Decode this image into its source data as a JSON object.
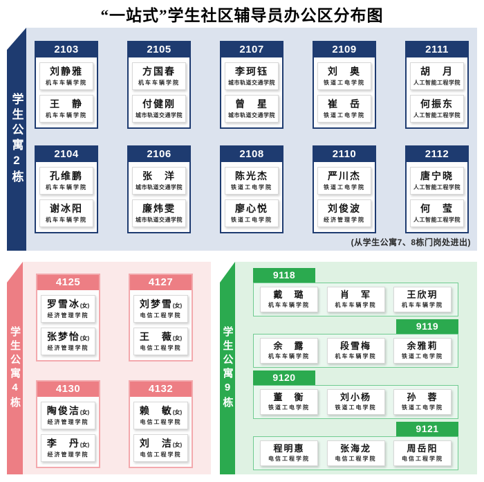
{
  "title": "“一站式”学生社区辅导员办公区分布图",
  "colors": {
    "navy": "#1e3b70",
    "blue_bg": "#dce3ee",
    "pink": "#ed7e84",
    "pink_border": "#f3a9ad",
    "pink_bg": "#fbe9e9",
    "green": "#2baa4f",
    "green_bg": "#dff2e3",
    "green_box_border": "#6fcb90",
    "green_box_bg": "#e9f7ee"
  },
  "buildings": [
    {
      "id": "b2",
      "name": "学生公寓2栋",
      "layout": "stacked",
      "note": "(从学生公寓7、8栋门岗处进出)",
      "rooms": [
        {
          "number": "2103",
          "staff": [
            {
              "name": "刘静雅",
              "dept": "机车车辆学院"
            },
            {
              "name": "王　静",
              "dept": "机车车辆学院"
            }
          ]
        },
        {
          "number": "2105",
          "staff": [
            {
              "name": "方国春",
              "dept": "机车车辆学院"
            },
            {
              "name": "付健刚",
              "dept": "城市轨道交通学院"
            }
          ]
        },
        {
          "number": "2107",
          "staff": [
            {
              "name": "李珂钰",
              "dept": "城市轨道交通学院"
            },
            {
              "name": "曾　星",
              "dept": "城市轨道交通学院"
            }
          ]
        },
        {
          "number": "2109",
          "staff": [
            {
              "name": "刘　奥",
              "dept": "铁道工电学院"
            },
            {
              "name": "崔　岳",
              "dept": "铁道工电学院"
            }
          ]
        },
        {
          "number": "2111",
          "staff": [
            {
              "name": "胡　月",
              "dept": "人工智能工程学院"
            },
            {
              "name": "何振东",
              "dept": "人工智能工程学院"
            }
          ]
        },
        {
          "number": "2104",
          "staff": [
            {
              "name": "孔维鹏",
              "dept": "机车车辆学院"
            },
            {
              "name": "谢冰阳",
              "dept": "机车车辆学院"
            }
          ]
        },
        {
          "number": "2106",
          "staff": [
            {
              "name": "张　洋",
              "dept": "城市轨道交通学院"
            },
            {
              "name": "廉炜雯",
              "dept": "城市轨道交通学院"
            }
          ]
        },
        {
          "number": "2108",
          "staff": [
            {
              "name": "陈光杰",
              "dept": "铁道工电学院"
            },
            {
              "name": "廖心悦",
              "dept": "铁道工电学院"
            }
          ]
        },
        {
          "number": "2110",
          "staff": [
            {
              "name": "严川杰",
              "dept": "铁道工电学院"
            },
            {
              "name": "刘俊波",
              "dept": "经济管理学院"
            }
          ]
        },
        {
          "number": "2112",
          "staff": [
            {
              "name": "唐宁晓",
              "dept": "人工智能工程学院"
            },
            {
              "name": "何　莹",
              "dept": "人工智能工程学院"
            }
          ]
        }
      ]
    },
    {
      "id": "b4",
      "name": "学生公寓4栋",
      "layout": "stacked",
      "rooms": [
        {
          "number": "4125",
          "staff": [
            {
              "name": "罗雪冰",
              "suffix": "(女)",
              "dept": "经济管理学院"
            },
            {
              "name": "张梦怡",
              "suffix": "(女)",
              "dept": "经济管理学院"
            }
          ]
        },
        {
          "number": "4127",
          "staff": [
            {
              "name": "刘梦雪",
              "suffix": "(女)",
              "dept": "电信工程学院"
            },
            {
              "name": "王　薇",
              "suffix": "(女)",
              "dept": "电信工程学院"
            }
          ]
        },
        {
          "number": "4130",
          "staff": [
            {
              "name": "陶俊洁",
              "suffix": "(女)",
              "dept": "经济管理学院"
            },
            {
              "name": "李　丹",
              "suffix": "(女)",
              "dept": "经济管理学院"
            }
          ]
        },
        {
          "number": "4132",
          "staff": [
            {
              "name": "赖　敏",
              "suffix": "(女)",
              "dept": "电信工程学院"
            },
            {
              "name": "刘　洁",
              "suffix": "(女)",
              "dept": "电信工程学院"
            }
          ]
        }
      ]
    },
    {
      "id": "b9",
      "name": "学生公寓9栋",
      "layout": "tabbed",
      "rooms": [
        {
          "number": "9118",
          "tab": "left",
          "staff": [
            {
              "name": "戴　璐",
              "dept": "机车车辆学院"
            },
            {
              "name": "肖　军",
              "dept": "机车车辆学院"
            },
            {
              "name": "王欣玥",
              "dept": "机车车辆学院"
            }
          ]
        },
        {
          "number": "9119",
          "tab": "right",
          "staff": [
            {
              "name": "余　露",
              "dept": "机车车辆学院"
            },
            {
              "name": "段雪梅",
              "dept": "机车车辆学院"
            },
            {
              "name": "余雅莉",
              "dept": "铁道工电学院"
            }
          ]
        },
        {
          "number": "9120",
          "tab": "left",
          "staff": [
            {
              "name": "董　衡",
              "dept": "铁道工电学院"
            },
            {
              "name": "刘小杨",
              "dept": "铁道工电学院"
            },
            {
              "name": "孙　蓉",
              "dept": "铁道工电学院"
            }
          ]
        },
        {
          "number": "9121",
          "tab": "right",
          "staff": [
            {
              "name": "程明惠",
              "dept": "电信工程学院"
            },
            {
              "name": "张海龙",
              "dept": "电信工程学院"
            },
            {
              "name": "周岳阳",
              "dept": "电信工程学院"
            }
          ]
        }
      ]
    }
  ]
}
